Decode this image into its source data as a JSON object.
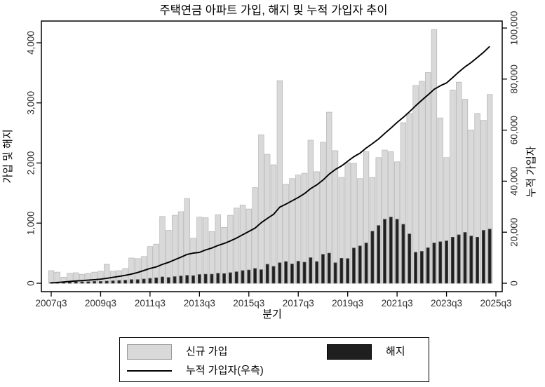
{
  "figure": {
    "title": "주택연금 아파트 가입, 해지 및 누적 가입자 추이",
    "x_axis": {
      "title": "분기"
    },
    "y_left_axis": {
      "title": "가입 및 해지"
    },
    "y_right_axis": {
      "title": "누적 가입자"
    },
    "legend": {
      "new_label": "신규 가입",
      "cancel_label": "해지",
      "line_label": "누적 가입자(우측)"
    },
    "colors": {
      "new_bar_fill": "#d9d9d9",
      "new_bar_stroke": "#b3b3b3",
      "cancel_bar_fill": "#1f1f1f",
      "cancel_bar_stroke": "#4d4d4d",
      "line_color": "#000000",
      "frame_color": "#000000",
      "tick_text_color": "#303030"
    }
  },
  "chart_data": {
    "type": "bar",
    "subtype": "dual-axis bar + line",
    "title": "주택연금 아파트 가입, 해지 및 누적 가입자 추이",
    "xlabel": "분기",
    "ylabel_left": "가입 및 해지",
    "ylabel_right": "누적 가입자",
    "ylim_left": [
      0,
      4000
    ],
    "ylim_right": [
      0,
      100000
    ],
    "y_left_ticks": {
      "values": [
        0,
        1000,
        2000,
        3000,
        4000
      ],
      "labels": [
        "0",
        "1,000",
        "2,000",
        "3,000",
        "4,000"
      ]
    },
    "y_right_ticks": {
      "values": [
        0,
        20000,
        40000,
        60000,
        80000,
        100000
      ],
      "labels": [
        "0",
        "20,000",
        "40,000",
        "60,000",
        "80,000",
        "100,000"
      ]
    },
    "x_ticks": {
      "quarter_index": [
        0,
        8,
        16,
        24,
        32,
        40,
        48,
        56,
        64,
        72
      ],
      "labels": [
        "2007q3",
        "2009q3",
        "2011q3",
        "2013q3",
        "2015q3",
        "2017q3",
        "2019q3",
        "2021q3",
        "2023q3",
        "2025q3"
      ]
    },
    "grid": false,
    "legend_position": "bottom-center",
    "x": [
      "2007q3",
      "2007q4",
      "2008q1",
      "2008q2",
      "2008q3",
      "2008q4",
      "2009q1",
      "2009q2",
      "2009q3",
      "2009q4",
      "2010q1",
      "2010q2",
      "2010q3",
      "2010q4",
      "2011q1",
      "2011q2",
      "2011q3",
      "2011q4",
      "2012q1",
      "2012q2",
      "2012q3",
      "2012q4",
      "2013q1",
      "2013q2",
      "2013q3",
      "2013q4",
      "2014q1",
      "2014q2",
      "2014q3",
      "2014q4",
      "2015q1",
      "2015q2",
      "2015q3",
      "2015q4",
      "2016q1",
      "2016q2",
      "2016q3",
      "2016q4",
      "2017q1",
      "2017q2",
      "2017q3",
      "2017q4",
      "2018q1",
      "2018q2",
      "2018q3",
      "2018q4",
      "2019q1",
      "2019q2",
      "2019q3",
      "2019q4",
      "2020q1",
      "2020q2",
      "2020q3",
      "2020q4",
      "2021q1",
      "2021q2",
      "2021q3",
      "2021q4",
      "2022q1",
      "2022q2",
      "2022q3",
      "2022q4",
      "2023q1",
      "2023q2",
      "2023q3",
      "2023q4",
      "2024q1",
      "2024q2",
      "2024q3",
      "2024q4",
      "2025q1",
      "2025q2"
    ],
    "series": [
      {
        "name": "신규 가입",
        "type": "bar",
        "axis": "left",
        "color": "#d9d9d9",
        "values": [
          210,
          185,
          100,
          165,
          175,
          150,
          165,
          185,
          200,
          315,
          200,
          210,
          245,
          420,
          410,
          445,
          610,
          650,
          1110,
          880,
          1130,
          1190,
          1410,
          750,
          1100,
          1090,
          860,
          1140,
          930,
          1130,
          1250,
          1300,
          1235,
          1590,
          2470,
          2145,
          1970,
          3370,
          1645,
          1740,
          1800,
          1830,
          2380,
          1855,
          2345,
          2845,
          2205,
          1760,
          2005,
          1995,
          1740,
          2190,
          1760,
          2090,
          2215,
          2190,
          2020,
          2670,
          2825,
          3290,
          3360,
          3505,
          4220,
          2750,
          2090,
          3215,
          3345,
          3060,
          2550,
          2825,
          2710,
          3140
        ]
      },
      {
        "name": "해지",
        "type": "bar",
        "axis": "left",
        "color": "#1f1f1f",
        "values": [
          15,
          20,
          15,
          20,
          25,
          25,
          25,
          30,
          30,
          35,
          40,
          45,
          50,
          60,
          60,
          70,
          80,
          90,
          105,
          95,
          110,
          120,
          130,
          125,
          145,
          150,
          150,
          165,
          160,
          175,
          190,
          210,
          220,
          245,
          225,
          315,
          280,
          340,
          360,
          320,
          365,
          350,
          425,
          360,
          480,
          500,
          340,
          415,
          410,
          585,
          620,
          670,
          865,
          960,
          1065,
          1100,
          1065,
          980,
          820,
          515,
          530,
          590,
          670,
          690,
          705,
          765,
          805,
          845,
          785,
          765,
          880,
          900
        ]
      },
      {
        "name": "누적 가입자(우측)",
        "type": "line",
        "axis": "right",
        "color": "#000000",
        "values": [
          100,
          300,
          500,
          700,
          900,
          1050,
          1200,
          1400,
          1600,
          1950,
          2300,
          2700,
          3100,
          3600,
          4200,
          5000,
          5800,
          6400,
          7400,
          8200,
          9200,
          10200,
          11300,
          11800,
          12100,
          13050,
          13800,
          14800,
          15600,
          16600,
          17700,
          19000,
          20300,
          21600,
          23700,
          25400,
          27000,
          29800,
          31000,
          32300,
          33600,
          35100,
          37050,
          38550,
          40400,
          42750,
          44600,
          45950,
          47800,
          49600,
          51000,
          53000,
          54700,
          56500,
          58700,
          60800,
          63000,
          65000,
          67200,
          69500,
          71700,
          73800,
          76000,
          77400,
          78500,
          80600,
          82800,
          84800,
          86500,
          88500,
          90500,
          92800
        ]
      }
    ]
  }
}
